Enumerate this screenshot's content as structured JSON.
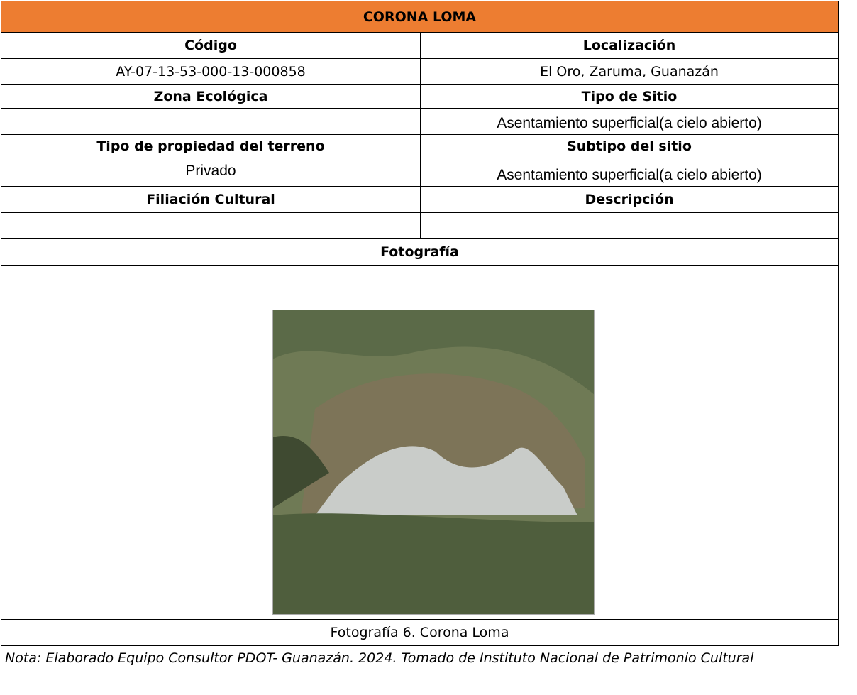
{
  "title": "CORONA LOMA",
  "fields": [
    {
      "label": "Código",
      "value": "AY-07-13-53-000-13-000858"
    },
    {
      "label": "Localización",
      "value": "El Oro, Zaruma, Guanazán"
    },
    {
      "label": "Zona Ecológica"
    },
    {
      "label": "Tipo de Sitio",
      "value": "Asentamiento superficial(a cielo abierto)"
    },
    {
      "label": "Tipo de propiedad del terreno",
      "value": "Privado"
    },
    {
      "label": "Subtipo del sitio",
      "value": "Asentamiento superficial(a cielo abierto)"
    },
    {
      "label": "Filiación Cultural"
    },
    {
      "label": "Descripción"
    }
  ],
  "photo": {
    "label": "Fotografía",
    "caption": "Fotografía 6. Corona Loma"
  },
  "note": "Nota: Elaborado Equipo Consultor PDOT- Guanazán. 2024. Tomado de Instituto Nacional de Patrimonio Cultural"
}
